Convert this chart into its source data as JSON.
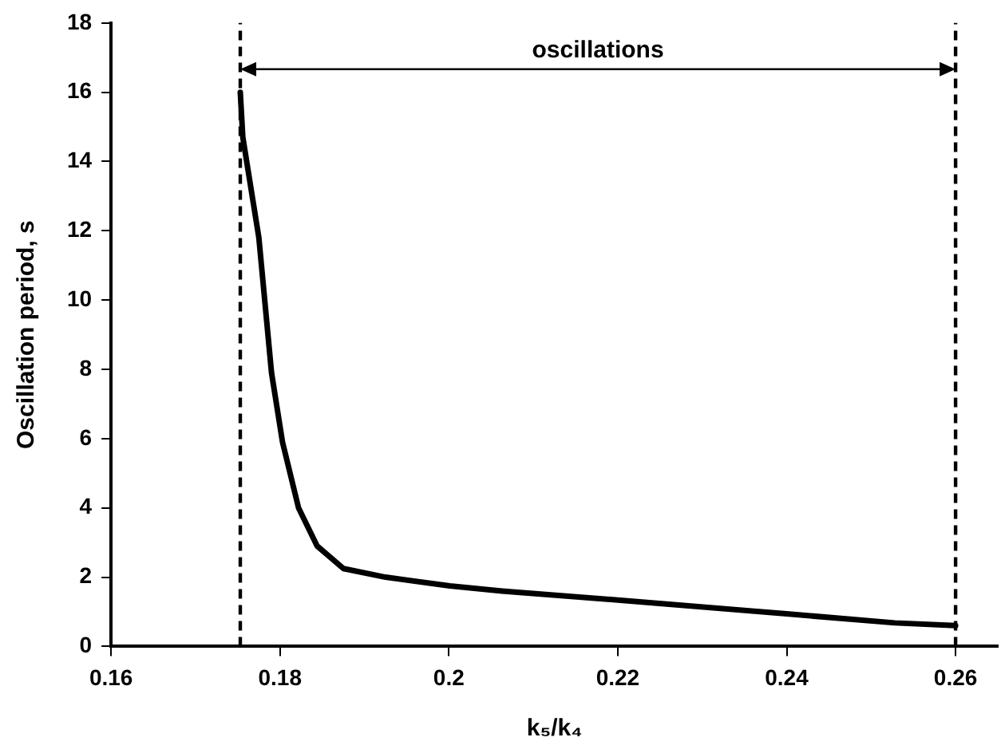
{
  "chart_data": {
    "type": "line",
    "xlabel": "k₅/k₄",
    "ylabel": "Oscillation period, s",
    "annotations": [
      "oscillations"
    ],
    "x": [
      0.1753,
      0.1756,
      0.1775,
      0.179,
      0.1803,
      0.1822,
      0.1844,
      0.1875,
      0.1925,
      0.2001,
      0.2063,
      0.22,
      0.24,
      0.2528,
      0.26
    ],
    "series": [
      {
        "color": "#000000",
        "values": [
          16.0,
          14.7,
          11.8,
          7.9,
          5.9,
          4.0,
          2.9,
          2.25,
          2.0,
          1.75,
          1.6,
          1.34,
          0.94,
          0.68,
          0.6
        ]
      }
    ],
    "xlim": [
      0.16,
      0.265
    ],
    "xticks": [
      0.16,
      0.18,
      0.2,
      0.22,
      0.24,
      0.26
    ],
    "ylim": [
      0,
      18
    ],
    "yticks": [
      0,
      2,
      4,
      6,
      8,
      10,
      12,
      14,
      16,
      18
    ],
    "ref_lines": [
      {
        "axis": "x",
        "value": 0.1753,
        "line_style": "dashed"
      },
      {
        "axis": "x",
        "value": 0.26,
        "line_style": "dashed"
      }
    ],
    "grid": false,
    "legend": false,
    "marker": "none",
    "line_style": "solid"
  }
}
